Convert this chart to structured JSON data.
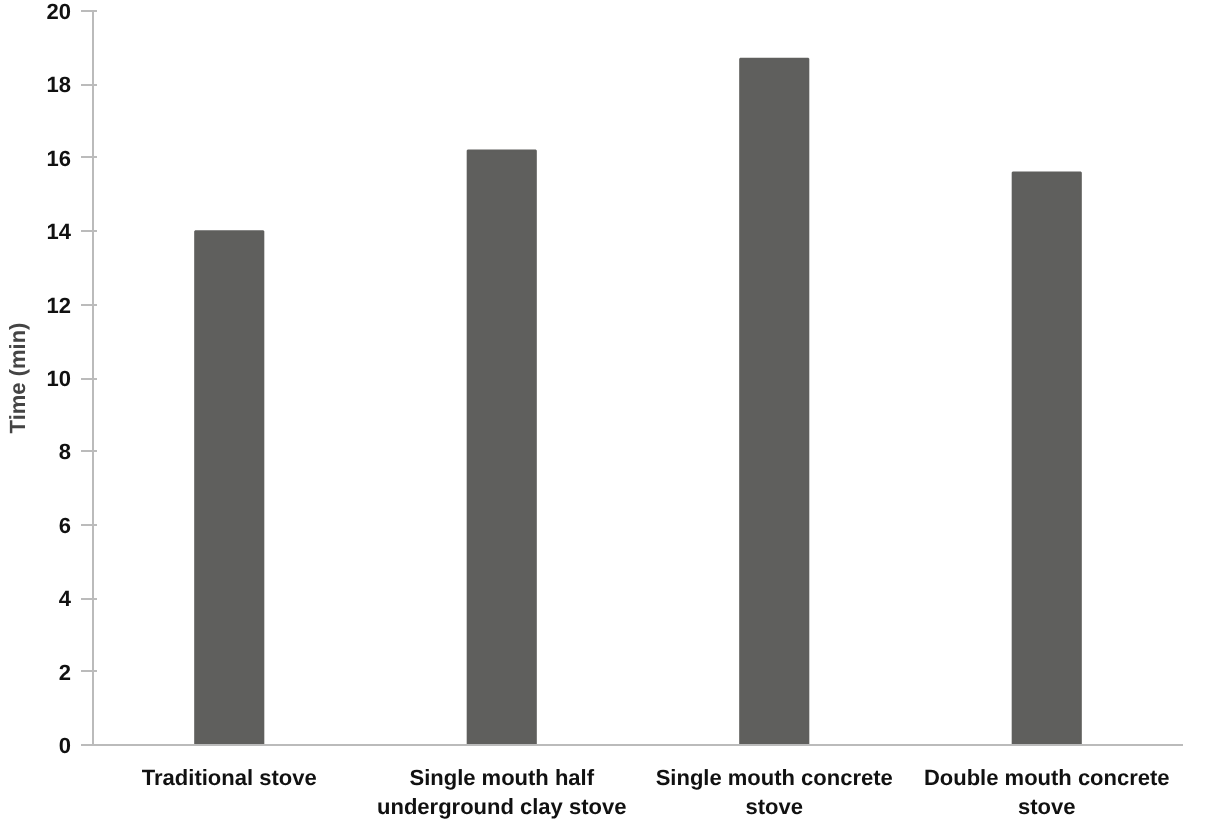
{
  "chart_data": {
    "type": "bar",
    "ylabel": "Time (min)",
    "categories": [
      "Traditional stove",
      "Single mouth half underground clay stove",
      "Single mouth concrete stove",
      "Double mouth concrete stove"
    ],
    "values": [
      14.0,
      16.2,
      18.7,
      15.6
    ],
    "color": "#5f5f5d",
    "ylim": [
      0,
      20
    ],
    "yticks": [
      0,
      2,
      4,
      6,
      8,
      10,
      12,
      14,
      16,
      18,
      20
    ],
    "grid": false
  }
}
